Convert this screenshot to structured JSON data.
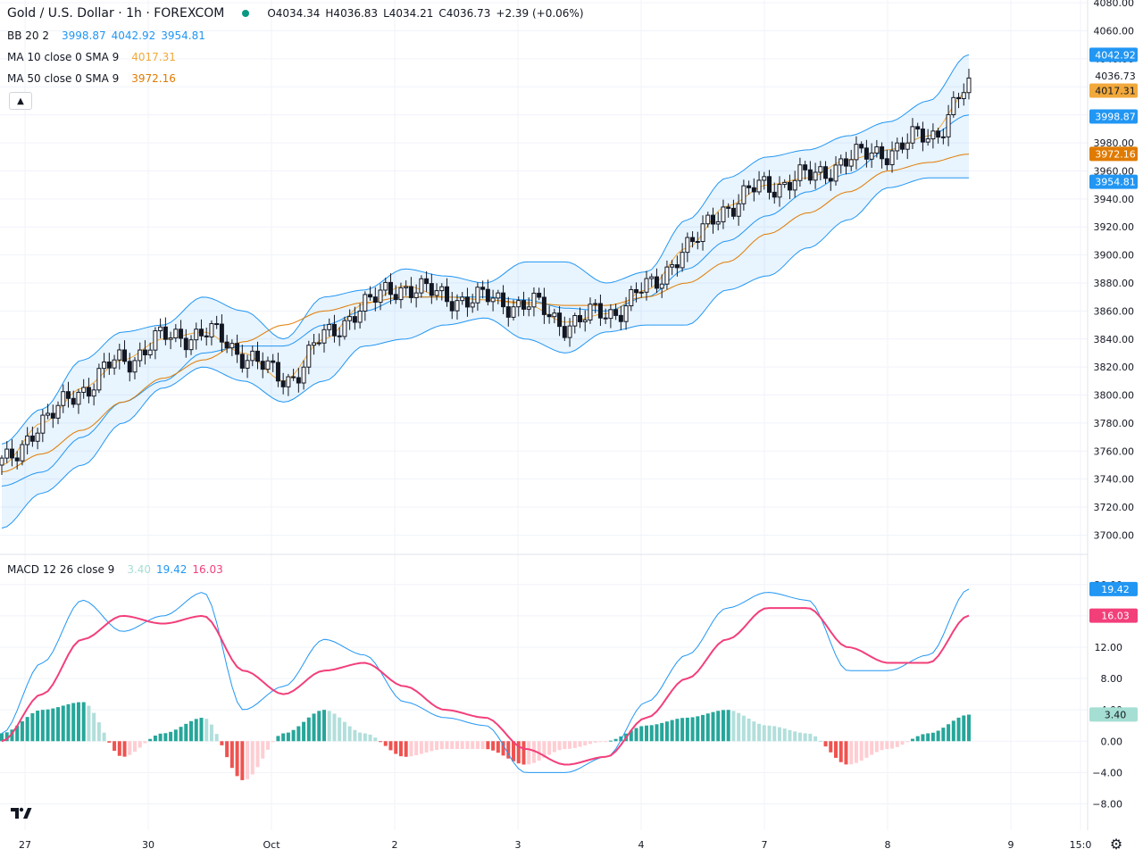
{
  "header": {
    "symbol": "Gold / U.S. Dollar · 1h · FOREXCOM",
    "open": "O4034.34",
    "high": "H4036.83",
    "low": "L4034.21",
    "close": "C4036.73",
    "change": "+2.39 (+0.06%)"
  },
  "indicators": {
    "bb": {
      "label": "BB 20 2",
      "basis": "3998.87",
      "upper": "4042.92",
      "lower": "3954.81",
      "color": "#2196f3"
    },
    "ma10": {
      "label": "MA 10 close 0 SMA 9",
      "value": "4017.31",
      "color": "#f2a93b"
    },
    "ma50": {
      "label": "MA 50 close 0 SMA 9",
      "value": "3972.16",
      "color": "#e07b00"
    },
    "macd": {
      "label": "MACD 12 26 close 9",
      "hist": "3.40",
      "macd": "19.42",
      "signal": "16.03",
      "hist_color": "#a5dfd3",
      "macd_color": "#2196f3",
      "signal_color": "#f23f7a"
    }
  },
  "price_tags": {
    "upper": "4042.92",
    "close": "4036.73",
    "ma10": "4017.31",
    "basis": "3998.87",
    "ma50": "3972.16",
    "lower": "3954.81",
    "macd": "19.42",
    "signal": "16.03",
    "hist": "3.40"
  },
  "icons": {
    "logo": "tradingview-logo-icon",
    "settings": "gear-icon",
    "collapse": "chevron-up-icon"
  },
  "chart_data": {
    "type": "candlestick",
    "title": "Gold / U.S. Dollar · 1h · FOREXCOM",
    "y_ticks": [
      "4080.00",
      "4060.00",
      "4040.00",
      "4020.00",
      "4000.00",
      "3980.00",
      "3960.00",
      "3940.00",
      "3920.00",
      "3900.00",
      "3880.00",
      "3860.00",
      "3840.00",
      "3820.00",
      "3800.00",
      "3780.00",
      "3760.00",
      "3740.00",
      "3720.00",
      "3700.00"
    ],
    "x_ticks": [
      "27",
      "30",
      "Oct",
      "2",
      "3",
      "4",
      "7",
      "8",
      "9",
      "15:0"
    ],
    "ylim": [
      3692,
      4082
    ],
    "macd_ticks": [
      "20.00",
      "16.00",
      "12.00",
      "8.00",
      "4.00",
      "0.00",
      "−4.00",
      "−8.00"
    ],
    "macd_ylim": [
      -10,
      21
    ],
    "grid": true,
    "series": [
      {
        "name": "BB 20 2 (basis/upper/lower)",
        "values": [
          [
            3735,
            3765,
            3705
          ],
          [
            3745,
            3790,
            3730
          ],
          [
            3770,
            3825,
            3750
          ],
          [
            3795,
            3845,
            3780
          ],
          [
            3810,
            3850,
            3805
          ],
          [
            3830,
            3870,
            3820
          ],
          [
            3835,
            3860,
            3810
          ],
          [
            3835,
            3840,
            3795
          ],
          [
            3850,
            3870,
            3810
          ],
          [
            3860,
            3875,
            3835
          ],
          [
            3870,
            3890,
            3840
          ],
          [
            3870,
            3885,
            3850
          ],
          [
            3870,
            3880,
            3855
          ],
          [
            3868,
            3895,
            3840
          ],
          [
            3862,
            3895,
            3830
          ],
          [
            3860,
            3880,
            3845
          ],
          [
            3870,
            3888,
            3850
          ],
          [
            3890,
            3925,
            3850
          ],
          [
            3910,
            3955,
            3875
          ],
          [
            3928,
            3970,
            3885
          ],
          [
            3945,
            3975,
            3905
          ],
          [
            3958,
            3985,
            3925
          ],
          [
            3975,
            3995,
            3948
          ],
          [
            3985,
            4010,
            3955
          ],
          [
            4000,
            4043,
            3955
          ]
        ]
      },
      {
        "name": "MA 10",
        "values": [
          3750,
          3780,
          3805,
          3825,
          3840,
          3845,
          3830,
          3810,
          3840,
          3865,
          3878,
          3870,
          3868,
          3865,
          3852,
          3858,
          3875,
          3905,
          3935,
          3950,
          3955,
          3968,
          3975,
          3985,
          4017
        ]
      },
      {
        "name": "MA 50",
        "values": [
          3745,
          3758,
          3775,
          3795,
          3812,
          3825,
          3838,
          3850,
          3860,
          3866,
          3870,
          3870,
          3868,
          3866,
          3864,
          3864,
          3870,
          3880,
          3895,
          3915,
          3930,
          3945,
          3960,
          3966,
          3972
        ]
      },
      {
        "name": "MACD",
        "values": [
          1,
          10,
          18,
          14,
          16,
          19,
          4,
          7,
          13,
          11,
          5,
          3,
          2,
          -4,
          -4,
          -2,
          5,
          11,
          17,
          19,
          18,
          9,
          9,
          11,
          19.42
        ]
      },
      {
        "name": "Signal",
        "values": [
          0,
          6,
          13,
          16,
          15,
          16,
          9,
          6,
          9,
          10,
          7,
          4,
          3,
          -1,
          -3,
          -2,
          3,
          8,
          13,
          17,
          17,
          12,
          10,
          10,
          16.03
        ]
      }
    ],
    "last": {
      "open": 4034.34,
      "high": 4036.83,
      "low": 4034.21,
      "close": 4036.73
    }
  }
}
